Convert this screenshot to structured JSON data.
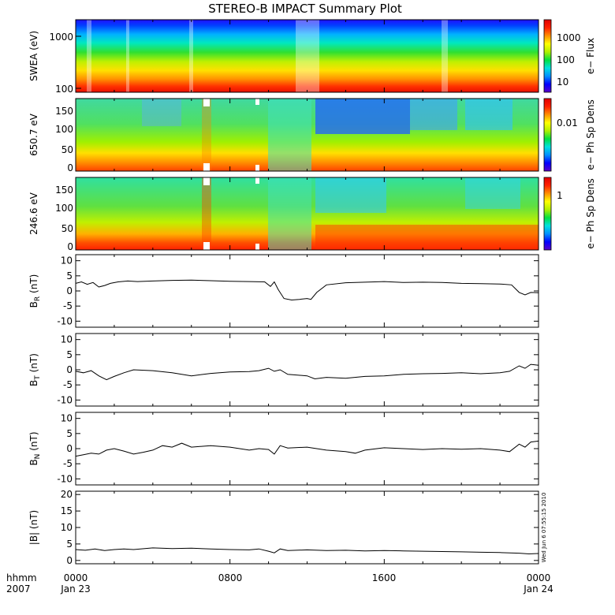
{
  "title": "STEREO-B IMPACT Summary Plot",
  "footer": {
    "xlabel_line1": "hhmm",
    "xlabel_line2": "2007",
    "date_left": "Jan 23",
    "date_right": "Jan 24",
    "timestamp": "Wed Jun  6 07:55:15 2010"
  },
  "colors": {
    "colormap": [
      "#5a00c8",
      "#0000ff",
      "#0090ff",
      "#00e0e0",
      "#00e040",
      "#b0f000",
      "#ffff00",
      "#ff9000",
      "#ff2000",
      "#e00000"
    ],
    "line": "#000000",
    "background": "#ffffff"
  },
  "chart_data": [
    {
      "type": "heatmap",
      "name": "swea",
      "ylabel": "SWEA (eV)",
      "yscale": "log",
      "ylim": [
        100,
        2000
      ],
      "yticks": [
        "1000",
        "100"
      ],
      "colorbar": {
        "label": "e− Flux",
        "ticks": [
          "1000",
          "100",
          "10"
        ]
      },
      "x": [
        "0000",
        "0800",
        "1600",
        "0000"
      ],
      "xlim_hours": [
        0,
        24
      ]
    },
    {
      "type": "heatmap",
      "name": "pad650",
      "ylabel": "650.7 eV",
      "ylim": [
        0,
        180
      ],
      "yticks": [
        "150",
        "100",
        "50",
        "0"
      ],
      "colorbar": {
        "label": "e− Ph Sp Dens",
        "ticks": [
          "0.01"
        ]
      },
      "x": [
        "0000",
        "0800",
        "1600",
        "0000"
      ],
      "xlim_hours": [
        0,
        24
      ]
    },
    {
      "type": "heatmap",
      "name": "pad246",
      "ylabel": "246.6 eV",
      "ylim": [
        0,
        180
      ],
      "yticks": [
        "150",
        "100",
        "50",
        "0"
      ],
      "colorbar": {
        "label": "e− Ph Sp Dens",
        "ticks": [
          "1"
        ]
      },
      "x": [
        "0000",
        "0800",
        "1600",
        "0000"
      ],
      "xlim_hours": [
        0,
        24
      ]
    },
    {
      "type": "line",
      "name": "br",
      "ylabel": "BR (nT)",
      "ylabel_main": "B",
      "ylabel_sub": "R",
      "ylabel_unit": "(nT)",
      "ylim": [
        -12,
        12
      ],
      "yticks": [
        10,
        5,
        0,
        -5,
        -10
      ],
      "x_hours": [
        0,
        0.3,
        0.6,
        0.9,
        1.2,
        1.5,
        1.8,
        2.2,
        2.7,
        3.2,
        4,
        5,
        6,
        7,
        8,
        9,
        9.8,
        10.1,
        10.3,
        10.5,
        10.8,
        11.2,
        11.6,
        12,
        12.2,
        12.5,
        13,
        14,
        15,
        16,
        17,
        18,
        19,
        20,
        21,
        22,
        22.6,
        23,
        23.3,
        23.6,
        24
      ],
      "values": [
        2.5,
        3,
        2.2,
        2.8,
        1.3,
        1.8,
        2.5,
        3,
        3.3,
        3.1,
        3.3,
        3.5,
        3.6,
        3.4,
        3.2,
        3.1,
        3,
        1.5,
        3,
        0.5,
        -2.5,
        -3,
        -2.8,
        -2.5,
        -2.8,
        -0.5,
        2,
        2.7,
        2.9,
        3.1,
        2.8,
        2.9,
        2.8,
        2.5,
        2.4,
        2.3,
        2,
        -0.5,
        -1.3,
        -0.5,
        -0.6
      ]
    },
    {
      "type": "line",
      "name": "bt",
      "ylabel": "BT (nT)",
      "ylabel_main": "B",
      "ylabel_sub": "T",
      "ylabel_unit": "(nT)",
      "ylim": [
        -12,
        12
      ],
      "yticks": [
        10,
        5,
        0,
        -5,
        -10
      ],
      "x_hours": [
        0,
        0.4,
        0.8,
        1.2,
        1.6,
        2,
        2.5,
        3,
        4,
        5,
        6,
        7,
        8,
        9,
        9.5,
        10,
        10.3,
        10.6,
        11,
        12,
        12.4,
        13,
        14,
        15,
        16,
        17,
        18,
        19,
        20,
        21,
        22,
        22.5,
        23,
        23.3,
        23.6,
        24
      ],
      "values": [
        -0.5,
        -1,
        -0.3,
        -2,
        -3.3,
        -2.2,
        -1,
        0,
        -0.3,
        -1,
        -2,
        -1.2,
        -0.7,
        -0.6,
        -0.3,
        0.5,
        -0.5,
        0,
        -1.5,
        -2,
        -3,
        -2.5,
        -2.8,
        -2.2,
        -2,
        -1.5,
        -1.3,
        -1.2,
        -1,
        -1.3,
        -1,
        -0.5,
        1.3,
        0.5,
        1.8,
        1.5
      ]
    },
    {
      "type": "line",
      "name": "bn",
      "ylabel": "BN (nT)",
      "ylabel_main": "B",
      "ylabel_sub": "N",
      "ylabel_unit": "(nT)",
      "ylim": [
        -12,
        12
      ],
      "yticks": [
        10,
        5,
        0,
        -5,
        -10
      ],
      "x_hours": [
        0,
        0.4,
        0.8,
        1.2,
        1.6,
        2,
        2.5,
        3,
        3.5,
        4,
        4.5,
        5,
        5.5,
        6,
        7,
        8,
        9,
        9.5,
        10,
        10.3,
        10.6,
        11,
        12,
        12.5,
        13,
        14,
        14.5,
        15,
        16,
        17,
        18,
        19,
        20,
        21,
        22,
        22.5,
        23,
        23.3,
        23.6,
        24
      ],
      "values": [
        -2.5,
        -2,
        -1.5,
        -1.8,
        -0.5,
        0,
        -0.8,
        -1.8,
        -1.2,
        -0.5,
        1,
        0.5,
        1.8,
        0.5,
        1,
        0.5,
        -0.5,
        0,
        -0.3,
        -1.8,
        1,
        0.2,
        0.5,
        0,
        -0.5,
        -1,
        -1.5,
        -0.5,
        0.3,
        0,
        -0.3,
        0,
        -0.2,
        0,
        -0.5,
        -1,
        1.5,
        0.5,
        2.2,
        2.5
      ]
    },
    {
      "type": "line",
      "name": "bmag",
      "ylabel": "|B| (nT)",
      "ylim": [
        -1,
        21
      ],
      "yticks": [
        20,
        15,
        10,
        5,
        0
      ],
      "x_hours": [
        0,
        0.5,
        1,
        1.5,
        2,
        2.5,
        3,
        4,
        5,
        6,
        7,
        8,
        9,
        9.5,
        10,
        10.3,
        10.6,
        11,
        12,
        13,
        14,
        15,
        16,
        17,
        18,
        19,
        20,
        21,
        22,
        23,
        23.5,
        24
      ],
      "values": [
        3.3,
        3.1,
        3.5,
        3,
        3.3,
        3.5,
        3.3,
        3.8,
        3.6,
        3.7,
        3.5,
        3.3,
        3.2,
        3.5,
        2.8,
        2.3,
        3.5,
        3,
        3.2,
        3,
        3.1,
        2.9,
        3,
        2.9,
        2.8,
        2.7,
        2.6,
        2.5,
        2.4,
        2.2,
        2,
        2.1
      ]
    }
  ]
}
